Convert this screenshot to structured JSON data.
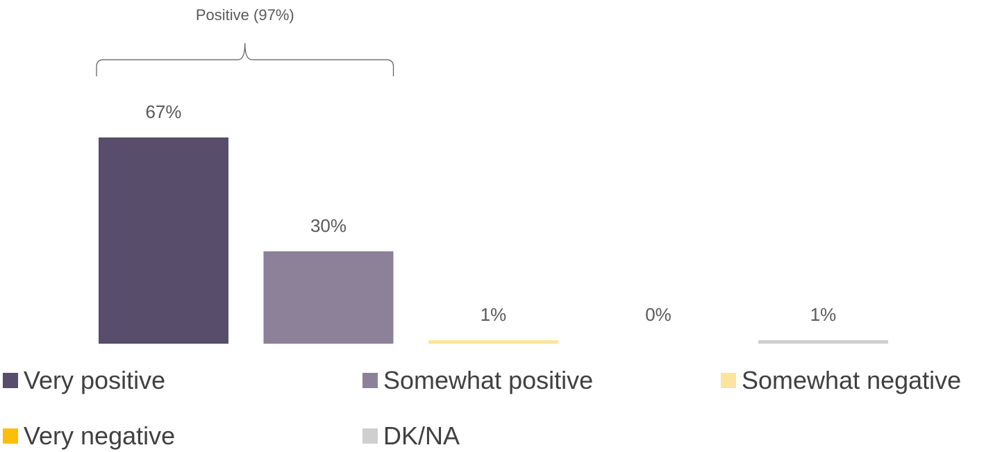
{
  "chart_data": {
    "type": "bar",
    "categories": [
      "Very positive",
      "Somewhat positive",
      "Somewhat negative",
      "Very negative",
      "DK/NA"
    ],
    "values": [
      67,
      30,
      1,
      0,
      1
    ],
    "data_labels": [
      "67%",
      "30%",
      "1%",
      "0%",
      "1%"
    ],
    "colors": [
      "#584d6b",
      "#8c8199",
      "#fbe49e",
      "#fbbf08",
      "#d0cfd0"
    ],
    "title": "",
    "xlabel": "",
    "ylabel": "",
    "ylim": [
      0,
      67
    ],
    "grid": false,
    "legend": {
      "placement": "bottom",
      "entries": [
        "Very positive",
        "Somewhat positive",
        "Somewhat negative",
        "Very negative",
        "DK/NA"
      ]
    },
    "annotations": [
      {
        "type": "bracket",
        "text": "Positive (97%)",
        "spans_categories": [
          "Very positive",
          "Somewhat positive"
        ]
      }
    ]
  }
}
